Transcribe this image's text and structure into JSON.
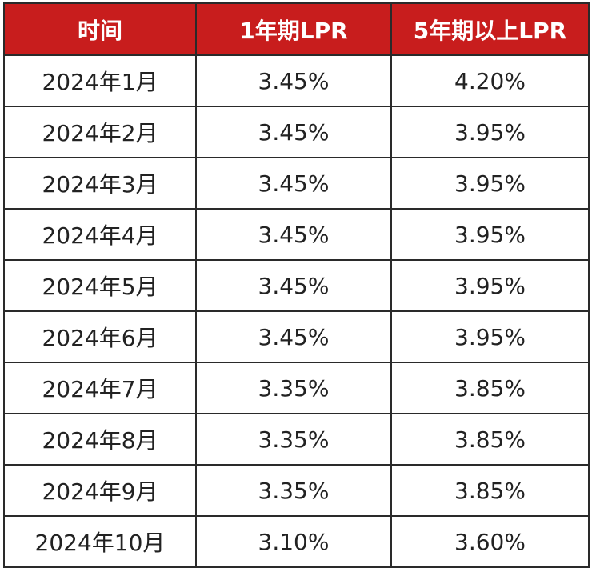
{
  "chart_data": {
    "type": "table",
    "columns": [
      "时间",
      "1年期LPR",
      "5年期以上LPR"
    ],
    "rows": [
      {
        "time": "2024年1月",
        "lpr_1y": "3.45%",
        "lpr_5y": "4.20%",
        "lpr_1y_changed": false,
        "lpr_5y_changed": false
      },
      {
        "time": "2024年2月",
        "lpr_1y": "3.45%",
        "lpr_5y": "3.95%",
        "lpr_1y_changed": false,
        "lpr_5y_changed": true
      },
      {
        "time": "2024年3月",
        "lpr_1y": "3.45%",
        "lpr_5y": "3.95%",
        "lpr_1y_changed": false,
        "lpr_5y_changed": false
      },
      {
        "time": "2024年4月",
        "lpr_1y": "3.45%",
        "lpr_5y": "3.95%",
        "lpr_1y_changed": false,
        "lpr_5y_changed": false
      },
      {
        "time": "2024年5月",
        "lpr_1y": "3.45%",
        "lpr_5y": "3.95%",
        "lpr_1y_changed": false,
        "lpr_5y_changed": false
      },
      {
        "time": "2024年6月",
        "lpr_1y": "3.45%",
        "lpr_5y": "3.95%",
        "lpr_1y_changed": false,
        "lpr_5y_changed": false
      },
      {
        "time": "2024年7月",
        "lpr_1y": "3.35%",
        "lpr_5y": "3.85%",
        "lpr_1y_changed": true,
        "lpr_5y_changed": true
      },
      {
        "time": "2024年8月",
        "lpr_1y": "3.35%",
        "lpr_5y": "3.85%",
        "lpr_1y_changed": false,
        "lpr_5y_changed": false
      },
      {
        "time": "2024年9月",
        "lpr_1y": "3.35%",
        "lpr_5y": "3.85%",
        "lpr_1y_changed": false,
        "lpr_5y_changed": false
      },
      {
        "time": "2024年10月",
        "lpr_1y": "3.10%",
        "lpr_5y": "3.60%",
        "lpr_1y_changed": true,
        "lpr_5y_changed": true
      }
    ]
  },
  "colors": {
    "header_bg": "#c81d1d",
    "header_text": "#ffffff",
    "changed_value": "#b4232a",
    "normal_value": "#222222",
    "border": "#2a2a2a"
  }
}
